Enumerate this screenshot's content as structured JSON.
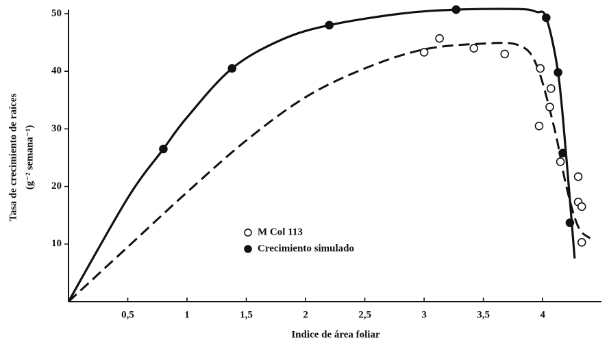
{
  "chart_data": {
    "type": "scatter",
    "xlabel": "Indice de área foliar",
    "ylabel": [
      "Tasa de crecimiento de raíces",
      "(g⁻² semana⁻¹)"
    ],
    "xlim": [
      0,
      4.45
    ],
    "ylim": [
      0,
      50
    ],
    "xticks": [
      {
        "value": 0.5,
        "label": "0,5"
      },
      1,
      {
        "value": 1.5,
        "label": "1,5"
      },
      2,
      {
        "value": 2.5,
        "label": "2,5"
      },
      3,
      {
        "value": 3.5,
        "label": "3,5"
      },
      4
    ],
    "yticks": [
      10,
      20,
      30,
      40,
      50
    ],
    "legend": "center",
    "series": [
      {
        "name": "M Col 113",
        "marker": "open",
        "color": "#111111",
        "x": [
          3.0,
          3.13,
          3.42,
          3.68,
          3.98,
          3.97,
          4.07,
          4.06,
          4.15,
          4.3,
          4.3,
          4.33,
          4.33
        ],
        "values": [
          43.3,
          45.7,
          44,
          43,
          40.5,
          30.5,
          37,
          33.8,
          24.3,
          21.7,
          17.3,
          16.5,
          10.3
        ]
      },
      {
        "name": "Crecimiento simulado",
        "marker": "filled",
        "color": "#111111",
        "x": [
          0.8,
          1.38,
          2.2,
          3.27,
          4.03,
          4.13,
          4.17,
          4.23
        ],
        "values": [
          26.5,
          40.5,
          48,
          50.7,
          49.3,
          39.8,
          25.8,
          13.7
        ]
      }
    ],
    "curves": [
      {
        "dashed": false,
        "color": "#111111",
        "x": [
          0,
          0.5,
          0.8,
          1,
          1.38,
          1.8,
          2.2,
          2.8,
          3.27,
          3.8,
          3.95,
          4.03,
          4.13,
          4.2,
          4.27
        ],
        "values": [
          0,
          18,
          26.5,
          32,
          40.5,
          45.5,
          48,
          50,
          50.7,
          50.8,
          50.3,
          49.3,
          39.8,
          25,
          7.5
        ]
      },
      {
        "dashed": true,
        "color": "#111111",
        "x": [
          0,
          0.5,
          1,
          1.5,
          2,
          2.5,
          3,
          3.5,
          3.8,
          3.95,
          4.1,
          4.2,
          4.3,
          4.4
        ],
        "values": [
          0,
          9.5,
          19,
          28,
          35.5,
          40.5,
          43.8,
          44.8,
          44.5,
          41,
          30,
          20,
          13,
          11
        ]
      }
    ]
  }
}
